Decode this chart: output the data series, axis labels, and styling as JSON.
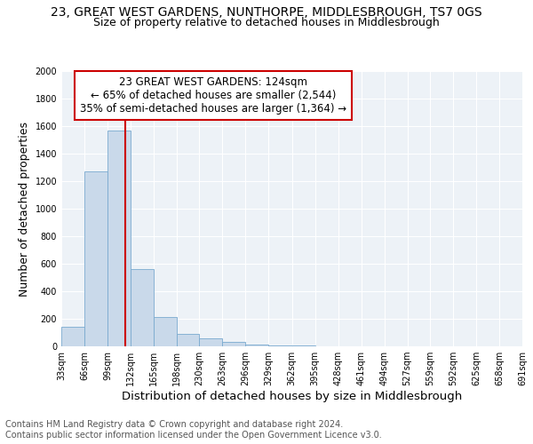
{
  "title": "23, GREAT WEST GARDENS, NUNTHORPE, MIDDLESBROUGH, TS7 0GS",
  "subtitle": "Size of property relative to detached houses in Middlesbrough",
  "xlabel": "Distribution of detached houses by size in Middlesbrough",
  "ylabel": "Number of detached properties",
  "annotation_line1": "23 GREAT WEST GARDENS: 124sqm",
  "annotation_line2": "← 65% of detached houses are smaller (2,544)",
  "annotation_line3": "35% of semi-detached houses are larger (1,364) →",
  "bin_edges": [
    33,
    66,
    99,
    132,
    165,
    198,
    230,
    263,
    296,
    329,
    362,
    395,
    428,
    461,
    494,
    527,
    559,
    592,
    625,
    658,
    691
  ],
  "bar_heights": [
    140,
    1270,
    1570,
    560,
    210,
    90,
    55,
    30,
    15,
    8,
    5,
    3,
    2,
    1,
    1,
    1,
    1,
    0,
    0,
    0
  ],
  "bar_color": "#c9d9ea",
  "bar_edge_color": "#7aaacf",
  "vline_color": "#cc0000",
  "vline_x": 124,
  "annotation_box_color": "#cc0000",
  "xlim_left": 33,
  "xlim_right": 691,
  "ylim_top": 2000,
  "ylim_bottom": 0,
  "yticks": [
    0,
    200,
    400,
    600,
    800,
    1000,
    1200,
    1400,
    1600,
    1800,
    2000
  ],
  "xtick_labels": [
    "33sqm",
    "66sqm",
    "99sqm",
    "132sqm",
    "165sqm",
    "198sqm",
    "230sqm",
    "263sqm",
    "296sqm",
    "329sqm",
    "362sqm",
    "395sqm",
    "428sqm",
    "461sqm",
    "494sqm",
    "527sqm",
    "559sqm",
    "592sqm",
    "625sqm",
    "658sqm",
    "691sqm"
  ],
  "xtick_positions": [
    33,
    66,
    99,
    132,
    165,
    198,
    230,
    263,
    296,
    329,
    362,
    395,
    428,
    461,
    494,
    527,
    559,
    592,
    625,
    658,
    691
  ],
  "footer_line1": "Contains HM Land Registry data © Crown copyright and database right 2024.",
  "footer_line2": "Contains public sector information licensed under the Open Government Licence v3.0.",
  "background_color": "#edf2f7",
  "grid_color": "#ffffff",
  "title_fontsize": 10,
  "subtitle_fontsize": 9,
  "axis_label_fontsize": 9,
  "tick_fontsize": 7,
  "footer_fontsize": 7,
  "annotation_fontsize": 8.5
}
